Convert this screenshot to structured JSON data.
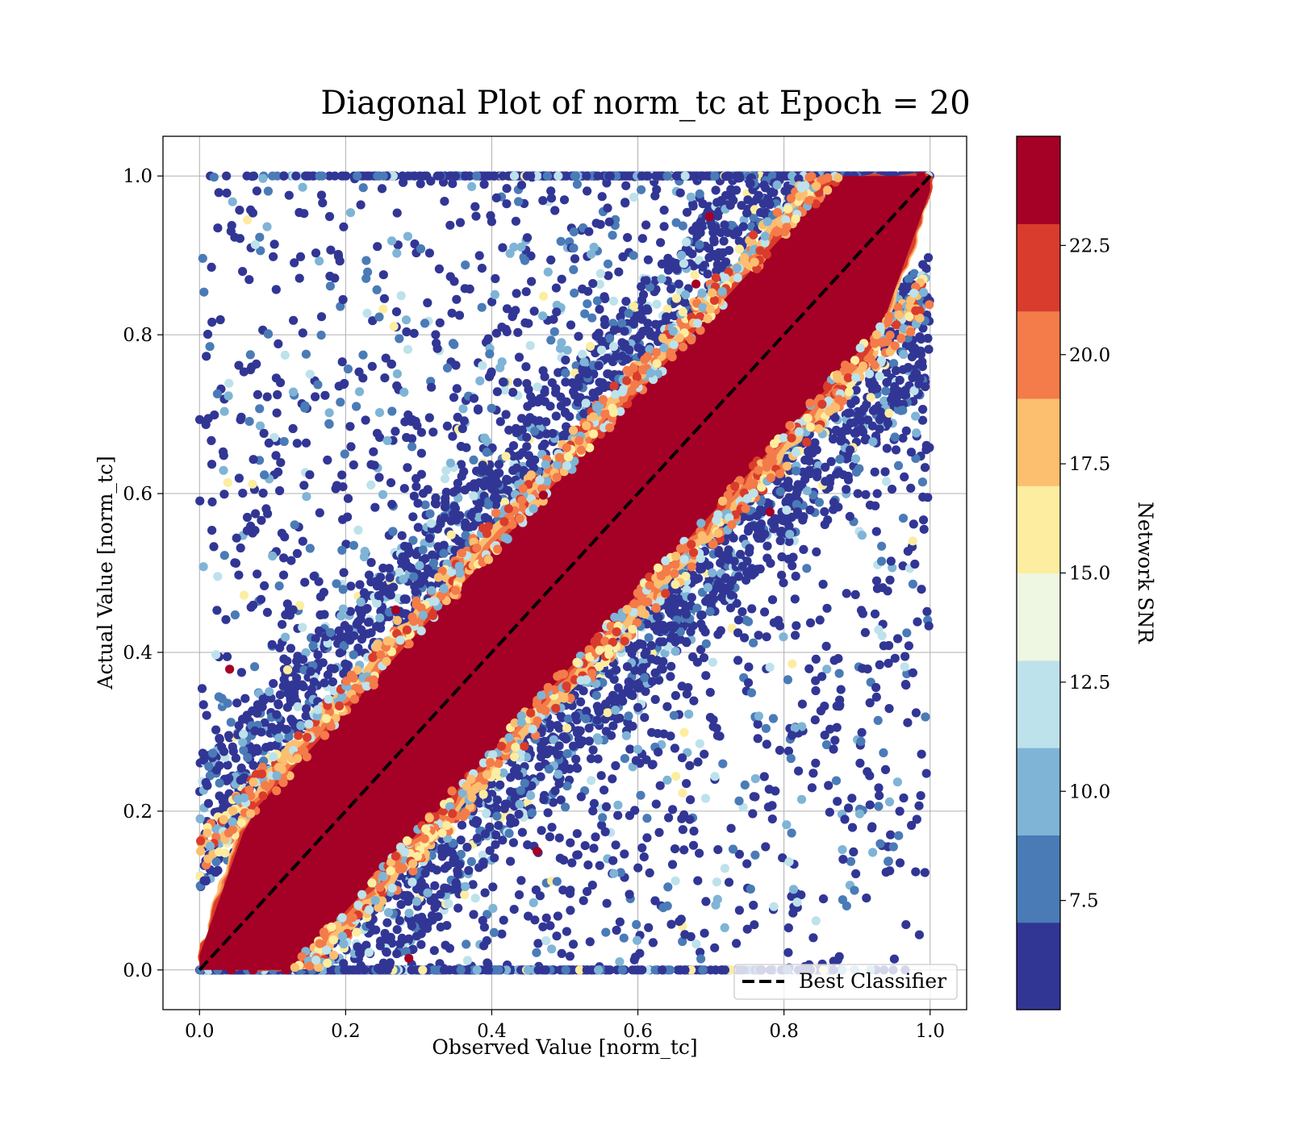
{
  "chart_data": {
    "type": "scatter",
    "title": "Diagonal Plot of norm_tc at Epoch = 20",
    "xlabel": "Observed Value [norm_tc]",
    "ylabel": "Actual Value [norm_tc]",
    "xlim": [
      -0.05,
      1.05
    ],
    "ylim": [
      -0.05,
      1.05
    ],
    "xticks": [
      "0.0",
      "0.2",
      "0.4",
      "0.6",
      "0.8",
      "1.0"
    ],
    "yticks": [
      "0.0",
      "0.2",
      "0.4",
      "0.6",
      "0.8",
      "1.0"
    ],
    "grid": true,
    "reference_line": {
      "label": "Best Classifier",
      "x": [
        0,
        1
      ],
      "y": [
        0,
        1
      ],
      "style": "dashed",
      "color": "#000000"
    },
    "legend": {
      "placement": "lower-right",
      "entries": [
        "Best Classifier"
      ]
    },
    "colorbar": {
      "label": "Network SNR",
      "ticks": [
        "7.5",
        "10.0",
        "12.5",
        "15.0",
        "17.5",
        "20.0",
        "22.5"
      ],
      "tick_values": [
        7.5,
        10.0,
        12.5,
        15.0,
        17.5,
        20.0,
        22.5
      ],
      "range": [
        5.0,
        25.0
      ],
      "colormap": "RdYlBu_r",
      "colors": [
        "#313695",
        "#4575b4",
        "#74add1",
        "#abd9e9",
        "#e0f3f8",
        "#ffffbf",
        "#fee090",
        "#fdae61",
        "#f46d43",
        "#d73027",
        "#a50026"
      ],
      "bands": [
        "#313695",
        "#4a7bb7",
        "#7fb4d6",
        "#bde2ec",
        "#eef7e1",
        "#fdeda0",
        "#fcbe6f",
        "#f47b4a",
        "#d93c2c",
        "#a50026"
      ]
    },
    "scatter_summary": {
      "approx_points": 50000,
      "high_snr_band": {
        "snr": ">22.5",
        "color": "#a50026",
        "follows": "y = x",
        "half_width": 0.13
      },
      "low_snr_scatter": {
        "snr": "5-10",
        "color": "#313695",
        "spread": "0.0-1.0 away from diagonal"
      }
    }
  }
}
